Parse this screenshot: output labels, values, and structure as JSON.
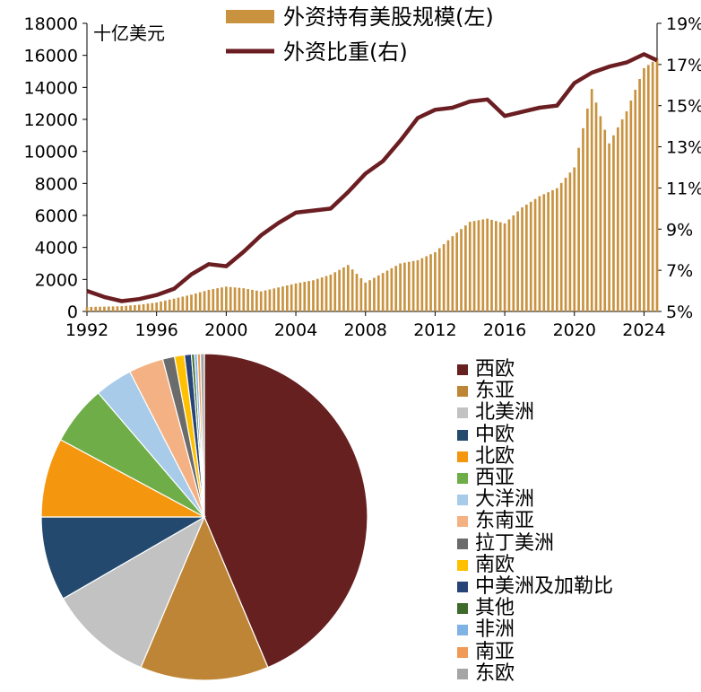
{
  "chart_data": [
    {
      "type": "bar+line",
      "unit_label": "十亿美元",
      "legend": [
        "外资持有美股规模(左)",
        "外资比重(右)"
      ],
      "colors": {
        "bars": "#C8923F",
        "line": "#6B1E22"
      },
      "x_ticks": [
        "1992",
        "1996",
        "2000",
        "2004",
        "2008",
        "2012",
        "2016",
        "2020",
        "2024"
      ],
      "y_left_ticks": [
        "0",
        "2000",
        "4000",
        "6000",
        "8000",
        "10000",
        "12000",
        "14000",
        "16000",
        "18000"
      ],
      "y_right_ticks": [
        "5%",
        "7%",
        "9%",
        "11%",
        "13%",
        "15%",
        "17%",
        "19%"
      ],
      "y_left_range": [
        0,
        18000
      ],
      "y_right_range": [
        5,
        19
      ],
      "x_range": [
        1992,
        2024.75
      ],
      "series": [
        {
          "name": "外资持有美股规模(左)",
          "kind": "bar",
          "points": [
            [
              1992,
              280
            ],
            [
              1993,
              300
            ],
            [
              1994,
              330
            ],
            [
              1995,
              420
            ],
            [
              1996,
              560
            ],
            [
              1997,
              800
            ],
            [
              1998,
              1050
            ],
            [
              1999,
              1350
            ],
            [
              2000,
              1550
            ],
            [
              2001,
              1450
            ],
            [
              2002,
              1250
            ],
            [
              2003,
              1500
            ],
            [
              2004,
              1750
            ],
            [
              2005,
              1950
            ],
            [
              2006,
              2300
            ],
            [
              2007,
              2900
            ],
            [
              2008,
              1800
            ],
            [
              2009,
              2400
            ],
            [
              2010,
              3000
            ],
            [
              2011,
              3200
            ],
            [
              2012,
              3700
            ],
            [
              2013,
              4700
            ],
            [
              2014,
              5600
            ],
            [
              2015,
              5800
            ],
            [
              2016,
              5500
            ],
            [
              2017,
              6500
            ],
            [
              2018,
              7200
            ],
            [
              2019,
              7700
            ],
            [
              2020,
              9000
            ],
            [
              2021,
              13900
            ],
            [
              2022,
              10500
            ],
            [
              2023,
              12500
            ],
            [
              2024,
              15200
            ],
            [
              2024.75,
              15800
            ]
          ]
        },
        {
          "name": "外资比重(右)",
          "kind": "line",
          "points": [
            [
              1992,
              6.0
            ],
            [
              1993,
              5.7
            ],
            [
              1994,
              5.5
            ],
            [
              1995,
              5.6
            ],
            [
              1996,
              5.8
            ],
            [
              1997,
              6.1
            ],
            [
              1998,
              6.8
            ],
            [
              1999,
              7.3
            ],
            [
              2000,
              7.2
            ],
            [
              2001,
              7.9
            ],
            [
              2002,
              8.7
            ],
            [
              2003,
              9.3
            ],
            [
              2004,
              9.8
            ],
            [
              2005,
              9.9
            ],
            [
              2006,
              10.0
            ],
            [
              2007,
              10.8
            ],
            [
              2008,
              11.7
            ],
            [
              2009,
              12.3
            ],
            [
              2010,
              13.3
            ],
            [
              2011,
              14.4
            ],
            [
              2012,
              14.8
            ],
            [
              2013,
              14.9
            ],
            [
              2014,
              15.2
            ],
            [
              2015,
              15.3
            ],
            [
              2016,
              14.5
            ],
            [
              2017,
              14.7
            ],
            [
              2018,
              14.9
            ],
            [
              2019,
              15.0
            ],
            [
              2020,
              16.1
            ],
            [
              2021,
              16.6
            ],
            [
              2022,
              16.9
            ],
            [
              2023,
              17.1
            ],
            [
              2024,
              17.5
            ],
            [
              2024.75,
              17.2
            ]
          ]
        }
      ]
    },
    {
      "type": "pie",
      "slices": [
        {
          "label": "西欧",
          "value": 44.5,
          "color": "#66201F"
        },
        {
          "label": "东亚",
          "value": 13.0,
          "color": "#BF8536"
        },
        {
          "label": "北美洲",
          "value": 10.5,
          "color": "#C2C2C2"
        },
        {
          "label": "中欧",
          "value": 8.5,
          "color": "#234A6E"
        },
        {
          "label": "北欧",
          "value": 8.0,
          "color": "#F5960F"
        },
        {
          "label": "西亚",
          "value": 6.0,
          "color": "#6EAD47"
        },
        {
          "label": "大洋洲",
          "value": 3.8,
          "color": "#A8CBEA"
        },
        {
          "label": "东南亚",
          "value": 3.5,
          "color": "#F4B183"
        },
        {
          "label": "拉丁美洲",
          "value": 1.2,
          "color": "#6B6B6B"
        },
        {
          "label": "南欧",
          "value": 1.0,
          "color": "#FFC000"
        },
        {
          "label": "中美洲及加勒比",
          "value": 0.7,
          "color": "#264478"
        },
        {
          "label": "其他",
          "value": 0.3,
          "color": "#3E6B2B"
        },
        {
          "label": "非洲",
          "value": 0.3,
          "color": "#7FB2E5"
        },
        {
          "label": "南亚",
          "value": 0.3,
          "color": "#F19A55"
        },
        {
          "label": "东欧",
          "value": 0.4,
          "color": "#A5A5A5"
        }
      ]
    }
  ]
}
